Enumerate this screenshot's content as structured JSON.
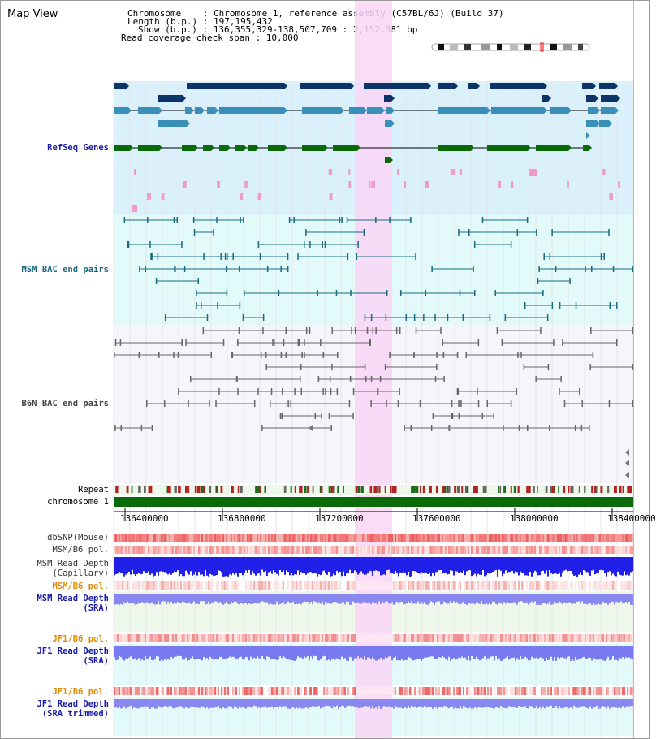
{
  "view": {
    "title": "Map View",
    "info_lines": [
      "Chromosome    : Chromosome 1, reference assembly (C57BL/6J) (Build 37)",
      "Length (b.p.) : 197,195,432",
      "Show (b.p.) : 136,355,329-138,507,709 : 2,152,381 bp",
      "Read coverage check span : 10,000"
    ]
  },
  "tracks": {
    "refseq": "RefSeq Genes",
    "msm_bac": "MSM BAC end pairs",
    "b6n_bac": "B6N BAC end pairs",
    "repeat": "Repeat",
    "chromosome": "chromosome 1",
    "dbsnp": "dbSNP(Mouse)",
    "msm_b6_pol_1": "MSM/B6 pol.",
    "msm_depth_cap": [
      "MSM Read Depth",
      "(Capillary)"
    ],
    "msm_b6_pol_2": "MSM/B6 pol.",
    "msm_depth_sra": [
      "MSM Read Depth",
      "(SRA)"
    ],
    "jf1_b6_pol_1": "JF1/B6 pol.",
    "jf1_depth_sra": [
      "JF1 Read Depth",
      "(SRA)"
    ],
    "jf1_b6_pol_2": "JF1/B6 pol.",
    "jf1_depth_trim": [
      "JF1 Read Depth",
      "(SRA trimmed)"
    ]
  },
  "axis": {
    "ticks": [
      "136400000",
      "136800000",
      "137200000",
      "137600000",
      "138000000",
      "138400000"
    ]
  },
  "colors": {
    "highlight": "#f9d6f6",
    "refseq_bg": "#daf0fa",
    "msm_bg": "#e2fafa",
    "b6n_bg": "#f5f5fb",
    "lbl_blue": "#1a1aa8",
    "lbl_teal": "#1a6a80",
    "lbl_orange": "#e08a00"
  }
}
